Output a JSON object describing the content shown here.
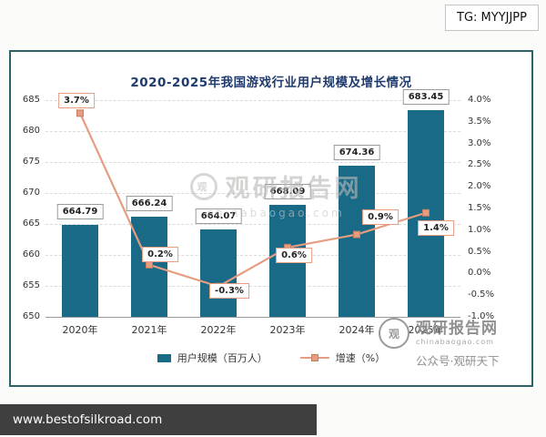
{
  "page": {
    "tg_label": "TG: MYYJJPP",
    "footer_url": "www.bestofsilkroad.com"
  },
  "watermark": {
    "center_text": "观研报告网",
    "center_sub": "chinabaogao.com",
    "corner_title": "观研报告网",
    "corner_sub": "chinabaogao.com",
    "corner_account": "公众号·观研天下",
    "logo_glyph": "观"
  },
  "chart_data": {
    "type": "bar",
    "title": "2020-2025年我国游戏行业用户规模及增长情况",
    "categories": [
      "2020年",
      "2021年",
      "2022年",
      "2023年",
      "2024年",
      "2025年"
    ],
    "series": [
      {
        "name": "用户规模（百万人）",
        "type": "bar",
        "axis": "left",
        "color": "#186a87",
        "values": [
          664.79,
          666.24,
          664.07,
          668.09,
          674.36,
          683.45
        ]
      },
      {
        "name": "增速（%）",
        "type": "line",
        "axis": "right",
        "color": "#e59c80",
        "values": [
          3.7,
          0.2,
          -0.3,
          0.6,
          0.9,
          1.4
        ]
      }
    ],
    "bar_labels": [
      "664.79",
      "666.24",
      "664.07",
      "668.09",
      "674.36",
      "683.45"
    ],
    "line_labels": [
      "3.7%",
      "0.2%",
      "-0.3%",
      "0.6%",
      "0.9%",
      "1.4%"
    ],
    "left_axis": {
      "min": 650,
      "max": 685,
      "step": 5,
      "labels": [
        "685",
        "680",
        "675",
        "670",
        "665",
        "660",
        "655",
        "650"
      ]
    },
    "right_axis": {
      "min": -1.0,
      "max": 4.0,
      "step": 0.5,
      "labels": [
        "4.0%",
        "3.5%",
        "3.0%",
        "2.5%",
        "2.0%",
        "1.5%",
        "1.0%",
        "0.5%",
        "0.0%",
        "-0.5%",
        "-1.0%"
      ]
    },
    "legend_position": "bottom",
    "grid": "horizontal-dashed"
  }
}
